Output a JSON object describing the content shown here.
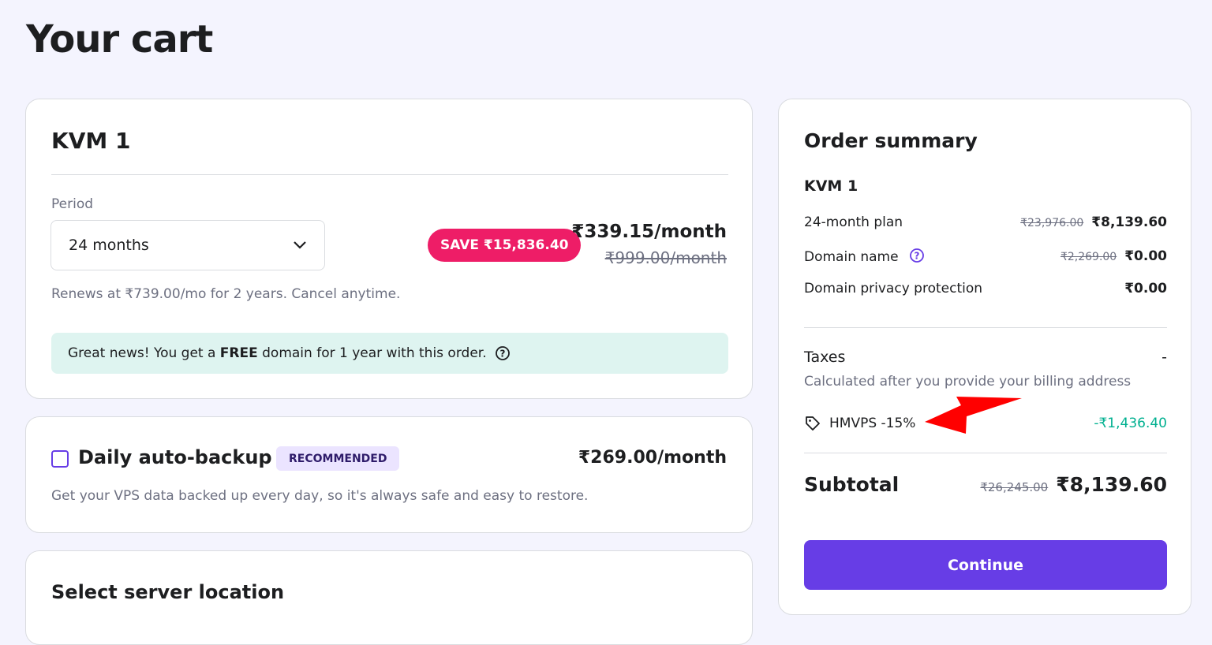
{
  "page_title": "Your cart",
  "product": {
    "name": "KVM 1",
    "period_label": "Period",
    "period_value": "24 months",
    "save_badge": "SAVE ₹15,836.40",
    "price": "₹339.15/month",
    "old_price": "₹999.00/month",
    "renew_note": "Renews at ₹739.00/mo for 2 years. Cancel anytime.",
    "promo_pre": "Great news! You get a ",
    "promo_bold": "FREE",
    "promo_post": " domain for 1 year with this order."
  },
  "backup": {
    "title": "Daily auto-backup",
    "badge": "RECOMMENDED",
    "price": "₹269.00/month",
    "description": "Get your VPS data backed up every day, so it's always safe and easy to restore.",
    "checked": false
  },
  "location": {
    "title": "Select server location"
  },
  "summary": {
    "title": "Order summary",
    "product": "KVM 1",
    "items": [
      {
        "label": "24-month plan",
        "old": "₹23,976.00",
        "price": "₹8,139.60"
      },
      {
        "label": "Domain name",
        "old": "₹2,269.00",
        "price": "₹0.00"
      },
      {
        "label": "Domain privacy protection",
        "old": "",
        "price": "₹0.00"
      }
    ],
    "taxes_label": "Taxes",
    "taxes_value": "-",
    "taxes_note": "Calculated after you provide your billing address",
    "coupon": "HMVPS -15%",
    "coupon_value": "-₹1,436.40",
    "subtotal_label": "Subtotal",
    "subtotal_old": "₹26,245.00",
    "subtotal": "₹8,139.60",
    "continue": "Continue"
  },
  "colors": {
    "accent": "#673de6",
    "save": "#ee1d67",
    "discount": "#00b090",
    "annotation_arrow": "#ff0000"
  }
}
